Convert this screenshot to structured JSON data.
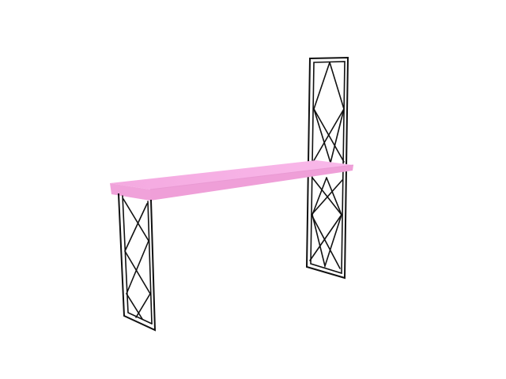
{
  "scene": {
    "background": "#ffffff",
    "object": "console-table",
    "colors": {
      "tabletop_top": "#f7b3e6",
      "tabletop_front": "#f2a6dd",
      "tabletop_edge": "#e596cf",
      "frame": "#111111"
    }
  }
}
